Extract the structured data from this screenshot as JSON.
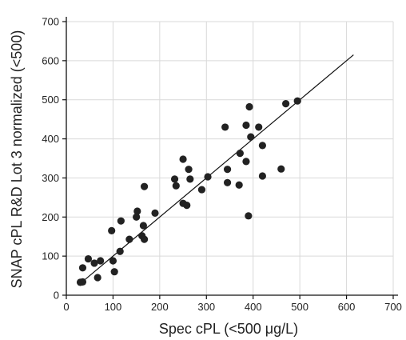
{
  "chart_data": {
    "type": "scatter",
    "title": "",
    "xlabel": "Spec cPL (<500 μg/L)",
    "ylabel": "SNAP cPL R&D Lot 3 normalized (<500)",
    "xlim": [
      0,
      700
    ],
    "ylim": [
      0,
      700
    ],
    "xticks": [
      0,
      100,
      200,
      300,
      400,
      500,
      600,
      700
    ],
    "yticks": [
      0,
      100,
      200,
      300,
      400,
      500,
      600,
      700
    ],
    "grid": true,
    "regression_line": {
      "x": [
        30,
        615
      ],
      "y": [
        30,
        615
      ]
    },
    "point_color": "#222222",
    "points": [
      {
        "x": 30,
        "y": 33
      },
      {
        "x": 35,
        "y": 34
      },
      {
        "x": 35,
        "y": 70
      },
      {
        "x": 47,
        "y": 93
      },
      {
        "x": 60,
        "y": 82
      },
      {
        "x": 67,
        "y": 45
      },
      {
        "x": 73,
        "y": 88
      },
      {
        "x": 97,
        "y": 165
      },
      {
        "x": 100,
        "y": 88
      },
      {
        "x": 103,
        "y": 60
      },
      {
        "x": 115,
        "y": 112
      },
      {
        "x": 117,
        "y": 190
      },
      {
        "x": 135,
        "y": 143
      },
      {
        "x": 150,
        "y": 200
      },
      {
        "x": 152,
        "y": 215
      },
      {
        "x": 162,
        "y": 152
      },
      {
        "x": 165,
        "y": 178
      },
      {
        "x": 167,
        "y": 143
      },
      {
        "x": 167,
        "y": 278
      },
      {
        "x": 190,
        "y": 210
      },
      {
        "x": 232,
        "y": 297
      },
      {
        "x": 235,
        "y": 280
      },
      {
        "x": 250,
        "y": 235
      },
      {
        "x": 250,
        "y": 348
      },
      {
        "x": 258,
        "y": 230
      },
      {
        "x": 262,
        "y": 322
      },
      {
        "x": 265,
        "y": 297
      },
      {
        "x": 290,
        "y": 270
      },
      {
        "x": 303,
        "y": 303
      },
      {
        "x": 340,
        "y": 430
      },
      {
        "x": 345,
        "y": 322
      },
      {
        "x": 345,
        "y": 288
      },
      {
        "x": 370,
        "y": 282
      },
      {
        "x": 372,
        "y": 363
      },
      {
        "x": 385,
        "y": 435
      },
      {
        "x": 385,
        "y": 342
      },
      {
        "x": 390,
        "y": 203
      },
      {
        "x": 392,
        "y": 482
      },
      {
        "x": 395,
        "y": 405
      },
      {
        "x": 412,
        "y": 430
      },
      {
        "x": 420,
        "y": 305
      },
      {
        "x": 420,
        "y": 383
      },
      {
        "x": 460,
        "y": 323
      },
      {
        "x": 470,
        "y": 490
      },
      {
        "x": 495,
        "y": 497
      }
    ]
  }
}
